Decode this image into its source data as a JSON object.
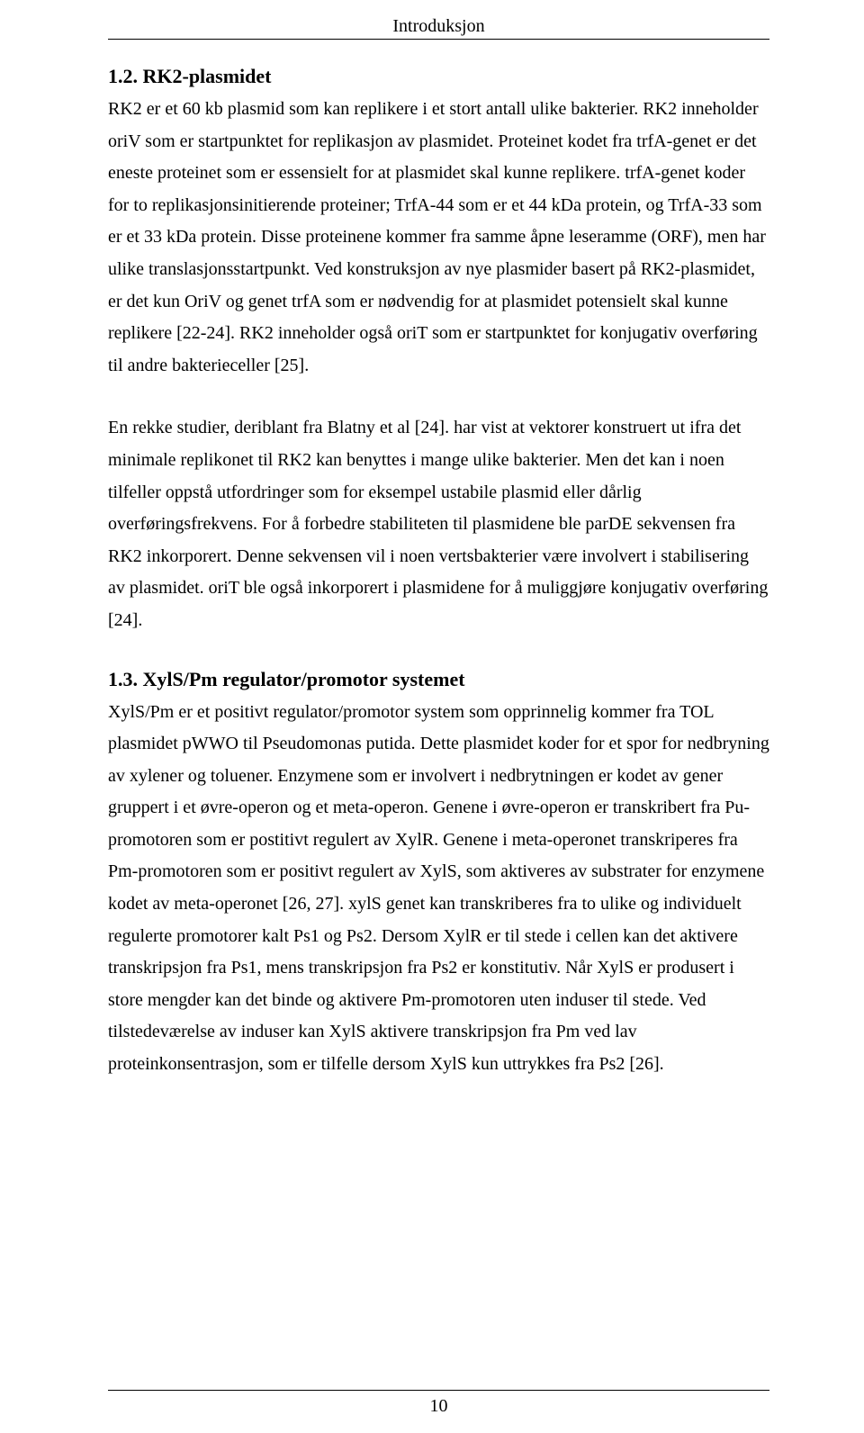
{
  "running_head": "Introduksjon",
  "page_number": "10",
  "sections": {
    "s1": {
      "heading": "1.2. RK2-plasmidet",
      "p1": "RK2 er et 60 kb plasmid som kan replikere i et stort antall ulike bakterier. RK2 inneholder oriV som er startpunktet for replikasjon av plasmidet. Proteinet kodet fra trfA-genet er det eneste proteinet som er essensielt for at plasmidet skal kunne replikere. trfA-genet koder for to replikasjonsinitierende proteiner; TrfA-44 som er et 44 kDa protein, og TrfA-33 som er et 33 kDa protein. Disse proteinene kommer fra samme åpne leseramme (ORF), men har ulike translasjonsstartpunkt. Ved konstruksjon av nye plasmider basert på RK2-plasmidet, er det kun OriV og genet trfA som er nødvendig for at plasmidet potensielt skal kunne replikere [22-24]. RK2 inneholder også oriT som er startpunktet for konjugativ overføring til andre bakterieceller [25].",
      "p2": "En rekke studier, deriblant fra Blatny et al [24]. har vist at vektorer konstruert ut ifra det minimale replikonet til RK2 kan benyttes i mange ulike bakterier. Men det kan i noen tilfeller oppstå utfordringer som for eksempel ustabile plasmid eller dårlig overføringsfrekvens. For å forbedre stabiliteten til plasmidene ble parDE sekvensen fra RK2 inkorporert. Denne sekvensen vil i noen vertsbakterier være involvert i stabilisering av plasmidet. oriT ble også inkorporert i plasmidene for å muliggjøre konjugativ overføring [24]."
    },
    "s2": {
      "heading": "1.3. XylS/Pm regulator/promotor systemet",
      "p1": "XylS/Pm er et positivt regulator/promotor system som opprinnelig kommer fra TOL plasmidet pWWO til Pseudomonas putida. Dette plasmidet koder for et spor for nedbryning av xylener og toluener. Enzymene som er involvert i nedbrytningen er kodet av gener gruppert i et øvre-operon og et meta-operon. Genene i øvre-operon er transkribert fra Pu-promotoren som er postitivt regulert av XylR. Genene i meta-operonet transkriperes fra Pm-promotoren som er positivt regulert av XylS, som aktiveres av substrater for enzymene kodet av meta-operonet [26, 27]. xylS genet kan transkriberes fra to ulike og individuelt regulerte promotorer kalt Ps1 og Ps2. Dersom XylR er til stede i cellen kan det aktivere transkripsjon fra Ps1, mens transkripsjon fra Ps2 er konstitutiv. Når XylS er produsert i store mengder kan det binde og aktivere Pm-promotoren uten induser til stede. Ved tilstedeværelse av induser kan XylS aktivere transkripsjon fra Pm ved lav proteinkonsentrasjon, som er tilfelle dersom XylS kun uttrykkes fra Ps2 [26]."
    }
  }
}
